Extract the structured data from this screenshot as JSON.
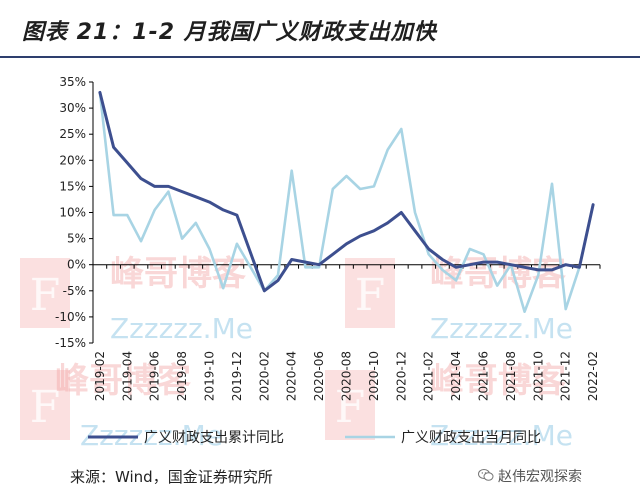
{
  "title": "图表 21：1-2 月我国广义财政支出加快",
  "source": "来源：Wind，国金证券研究所",
  "brand": "赵伟宏观探索",
  "brand_icon": "wechat-icon",
  "chart_data": {
    "type": "line",
    "title": "",
    "xlabel": "",
    "ylabel": "",
    "ylim": [
      -15,
      35
    ],
    "yticks": [
      "35%",
      "30%",
      "25%",
      "20%",
      "15%",
      "10%",
      "5%",
      "0%",
      "-5%",
      "-10%",
      "-15%"
    ],
    "x_tick_labels": [
      "2019-02",
      "2019-04",
      "2019-06",
      "2019-08",
      "2019-10",
      "2019-12",
      "2020-02",
      "2020-04",
      "2020-06",
      "2020-08",
      "2020-10",
      "2020-12",
      "2021-02",
      "2021-04",
      "2021-06",
      "2021-08",
      "2021-10",
      "2021-12",
      "2022-02"
    ],
    "x": [
      "2019-02",
      "2019-03",
      "2019-04",
      "2019-05",
      "2019-06",
      "2019-07",
      "2019-08",
      "2019-09",
      "2019-10",
      "2019-11",
      "2019-12",
      "2020-01",
      "2020-02",
      "2020-03",
      "2020-04",
      "2020-05",
      "2020-06",
      "2020-07",
      "2020-08",
      "2020-09",
      "2020-10",
      "2020-11",
      "2020-12",
      "2021-01",
      "2021-02",
      "2021-03",
      "2021-04",
      "2021-05",
      "2021-06",
      "2021-07",
      "2021-08",
      "2021-09",
      "2021-10",
      "2021-11",
      "2021-12",
      "2022-01",
      "2022-02"
    ],
    "grid": false,
    "legend_position": "bottom",
    "series": [
      {
        "name": "广义财政支出累计同比",
        "color": "#3d4f8f",
        "values": [
          33,
          22.5,
          19.5,
          16.5,
          15,
          15,
          14,
          13,
          12,
          10.5,
          9.5,
          null,
          -5,
          -3,
          1,
          0.5,
          0,
          2,
          4,
          5.5,
          6.5,
          8,
          10,
          6.5,
          3,
          1,
          -0.5,
          0,
          0.5,
          0.5,
          0,
          -0.5,
          -1,
          -1,
          0,
          -0.5,
          11.5
        ]
      },
      {
        "name": "广义财政支出当月同比",
        "color": "#a8d4e4",
        "values": [
          33,
          9.5,
          9.5,
          4.5,
          10.5,
          14,
          5,
          8,
          3,
          -4.5,
          4,
          null,
          -5,
          -2,
          18,
          -0.5,
          -0.5,
          14.5,
          17,
          14.5,
          15,
          22,
          26,
          10,
          2,
          -1,
          -3,
          3,
          2,
          -4,
          0,
          -9,
          -2,
          15.5,
          -8.5,
          -0.5,
          11.5
        ]
      }
    ]
  },
  "watermarks": {
    "letter": "F",
    "brand": "峰哥博客",
    "site": "Zzzzzz.Me"
  }
}
